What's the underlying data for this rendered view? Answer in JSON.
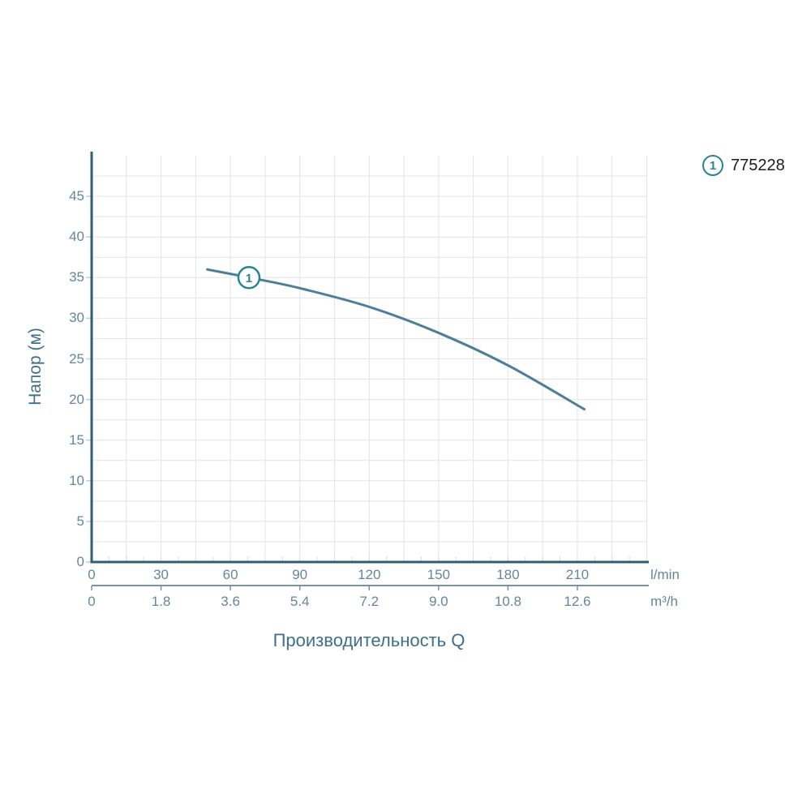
{
  "legend": {
    "marker": "1",
    "label": "775228"
  },
  "axes": {
    "y_title": "Напор (м)",
    "x_title": "Производительность Q",
    "x_unit_primary": "l/min",
    "x_unit_secondary": "m³/h",
    "y_ticks": [
      0,
      5,
      10,
      15,
      20,
      25,
      30,
      35,
      40,
      45
    ],
    "x_ticks_lmin": [
      0,
      30,
      60,
      90,
      120,
      150,
      180,
      210
    ],
    "x_ticks_m3h": [
      "0",
      "1.8",
      "3.6",
      "5.4",
      "7.2",
      "9.0",
      "10.8",
      "12.6"
    ]
  },
  "chart_data": {
    "type": "line",
    "title": "",
    "xlabel": "Производительность Q",
    "ylabel": "Напор (м)",
    "x_unit_primary": "l/min",
    "x_unit_secondary": "m³/h",
    "x_range_lmin": [
      0,
      240
    ],
    "y_range_m": [
      0,
      50
    ],
    "grid_step_x_lmin": 15,
    "grid_step_y_m": 2.5,
    "series": [
      {
        "name": "775228",
        "marker_label": "1",
        "marker_point_lmin_m": [
          68,
          35.0
        ],
        "points_lmin_m": [
          [
            50,
            36.0
          ],
          [
            70,
            34.9
          ],
          [
            90,
            33.7
          ],
          [
            120,
            31.4
          ],
          [
            150,
            28.2
          ],
          [
            180,
            24.2
          ],
          [
            213,
            18.8
          ]
        ]
      }
    ]
  },
  "colors": {
    "accent": "#2b8495",
    "axis": "#2f5e75",
    "grid": "#e4e4e4",
    "curve": "#4d7f98",
    "tick_text": "#64879b",
    "title_text": "#3e7089",
    "legend_text": "#1d1d1d",
    "secondary_axis": "#7795a4"
  }
}
